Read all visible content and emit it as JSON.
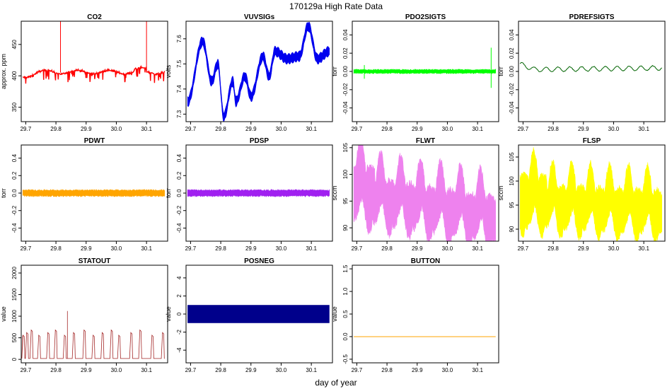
{
  "figure": {
    "super_title": "170129a   High Rate Data",
    "x_axis_label": "day of year"
  },
  "chart_data": [
    {
      "type": "line",
      "title": "CO2",
      "ylabel": "approx. ppm",
      "color": "#ff0000",
      "xlim": [
        29.685,
        30.17
      ],
      "ylim": [
        327,
        487
      ],
      "xticks": [
        29.7,
        29.8,
        29.9,
        30.0,
        30.1
      ],
      "yticks": [
        350,
        400,
        450
      ],
      "pattern": "co2"
    },
    {
      "type": "line",
      "title": "VUVSIGs",
      "ylabel": "volts",
      "color": "#0000ee",
      "xlim": [
        29.685,
        30.17
      ],
      "ylim": [
        7.27,
        7.67
      ],
      "xticks": [
        29.7,
        29.8,
        29.9,
        30.0,
        30.1
      ],
      "yticks": [
        7.3,
        7.4,
        7.5,
        7.6
      ],
      "pattern": "vuv"
    },
    {
      "type": "line",
      "title": "PDO2SIGTS",
      "ylabel": "torr",
      "color": "#00ff00",
      "xlim": [
        29.685,
        30.17
      ],
      "ylim": [
        -0.055,
        0.055
      ],
      "xticks": [
        29.7,
        29.8,
        29.9,
        30.0,
        30.1
      ],
      "yticks": [
        -0.04,
        -0.02,
        0.0,
        0.02,
        0.04
      ],
      "pattern": "pdo2"
    },
    {
      "type": "line",
      "title": "PDREFSIGTS",
      "ylabel": "torr",
      "color": "#006400",
      "xlim": [
        29.685,
        30.17
      ],
      "ylim": [
        -0.055,
        0.055
      ],
      "xticks": [
        29.7,
        29.8,
        29.9,
        30.0,
        30.1
      ],
      "yticks": [
        -0.04,
        -0.02,
        0.0,
        0.02,
        0.04
      ],
      "pattern": "pdref"
    },
    {
      "type": "line",
      "title": "PDWT",
      "ylabel": "torr",
      "color": "#ffa500",
      "xlim": [
        29.685,
        30.17
      ],
      "ylim": [
        -0.55,
        0.55
      ],
      "xticks": [
        29.7,
        29.8,
        29.9,
        30.0,
        30.1
      ],
      "yticks": [
        -0.4,
        -0.2,
        0.0,
        0.2,
        0.4
      ],
      "pattern": "pdwt"
    },
    {
      "type": "line",
      "title": "PDSP",
      "ylabel": "torr",
      "color": "#a020f0",
      "xlim": [
        29.685,
        30.17
      ],
      "ylim": [
        -0.55,
        0.55
      ],
      "xticks": [
        29.7,
        29.8,
        29.9,
        30.0,
        30.1
      ],
      "yticks": [
        -0.4,
        -0.2,
        0.0,
        0.2,
        0.4
      ],
      "pattern": "pdsp"
    },
    {
      "type": "area",
      "title": "FLWT",
      "ylabel": "sccm",
      "color": "#ee82ee",
      "xlim": [
        29.685,
        30.17
      ],
      "ylim": [
        87.5,
        105.5
      ],
      "xticks": [
        29.7,
        29.8,
        29.9,
        30.0,
        30.1
      ],
      "yticks": [
        90,
        95,
        100,
        105
      ],
      "pattern": "flwt"
    },
    {
      "type": "area",
      "title": "FLSP",
      "ylabel": "sccm",
      "color": "#ffff00",
      "xlim": [
        29.685,
        30.17
      ],
      "ylim": [
        87.5,
        107.5
      ],
      "xticks": [
        29.7,
        29.8,
        29.9,
        30.0,
        30.1
      ],
      "yticks": [
        90,
        95,
        100,
        105
      ],
      "pattern": "flsp"
    },
    {
      "type": "line",
      "title": "STATOUT",
      "ylabel": "value",
      "color": "#a52a2a",
      "xlim": [
        29.685,
        30.17
      ],
      "ylim": [
        -80,
        2180
      ],
      "xticks": [
        29.7,
        29.8,
        29.9,
        30.0,
        30.1
      ],
      "yticks": [
        0,
        500,
        1000,
        1500,
        2000
      ],
      "pattern": "statout"
    },
    {
      "type": "area",
      "title": "POSNEG",
      "ylabel": "value",
      "color": "#00008b",
      "xlim": [
        29.685,
        30.17
      ],
      "ylim": [
        -5.4,
        5.4
      ],
      "xticks": [
        29.7,
        29.8,
        29.9,
        30.0,
        30.1
      ],
      "yticks": [
        -4,
        -2,
        0,
        2,
        4
      ],
      "band": [
        -1,
        1
      ],
      "pattern": "posneg"
    },
    {
      "type": "line",
      "title": "BUTTON",
      "ylabel": "value",
      "color": "#ffa500",
      "xlim": [
        29.685,
        30.17
      ],
      "ylim": [
        -0.58,
        1.58
      ],
      "xticks": [
        29.7,
        29.8,
        29.9,
        30.0,
        30.1
      ],
      "yticks": [
        -0.5,
        0.0,
        0.5,
        1.0,
        1.5
      ],
      "constant": 0,
      "pattern": "button"
    }
  ]
}
